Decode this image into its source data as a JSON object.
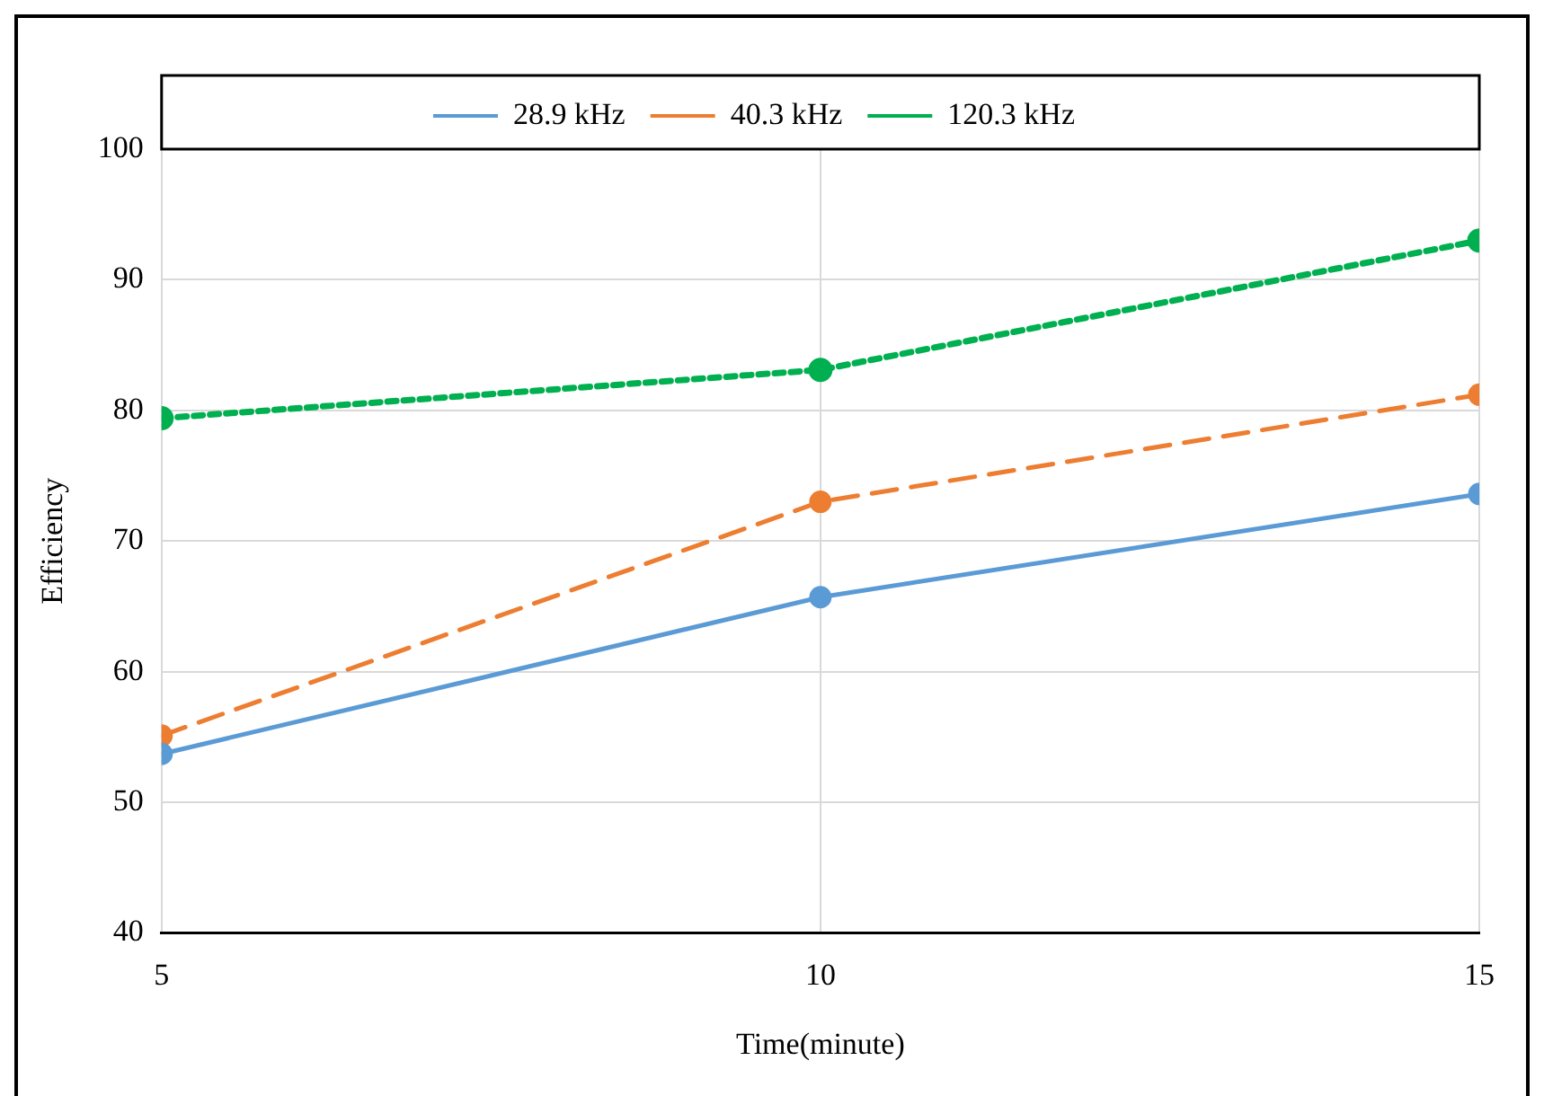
{
  "chart_data": {
    "type": "line",
    "xlabel": "Time(minute)",
    "ylabel": "Efficiency",
    "x": [
      5,
      10,
      15
    ],
    "xlim": [
      5,
      15
    ],
    "xticks": [
      5,
      10,
      15
    ],
    "ylim": [
      40,
      100
    ],
    "yticks": [
      40,
      50,
      60,
      70,
      80,
      90,
      100
    ],
    "grid": true,
    "legend": "top",
    "marker": "circle",
    "series": [
      {
        "name": "28.9 kHz",
        "color": "#5b9bd5",
        "values": [
          53.7,
          65.7,
          73.6
        ],
        "line_style": "solid"
      },
      {
        "name": "40.3 kHz",
        "color": "#ed7d31",
        "values": [
          55.1,
          73.0,
          81.2
        ],
        "line_style": "dashed"
      },
      {
        "name": "120.3 kHz",
        "color": "#00b050",
        "values": [
          79.4,
          83.1,
          93.0
        ],
        "line_style": "dotted"
      }
    ]
  }
}
